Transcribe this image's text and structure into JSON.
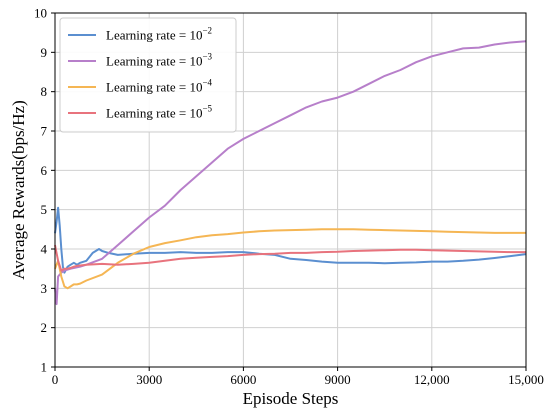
{
  "chart_data": {
    "type": "line",
    "title": "",
    "xlabel": "Episode Steps",
    "ylabel": "Average Rewards(bps/Hz)",
    "xlim": [
      0,
      15000
    ],
    "ylim": [
      1,
      10
    ],
    "x_ticks": [
      0,
      3000,
      6000,
      9000,
      12000,
      15000
    ],
    "x_tick_labels": [
      "0",
      "3000",
      "6000",
      "9000",
      "12,000",
      "15,000"
    ],
    "y_ticks": [
      1,
      2,
      3,
      4,
      5,
      6,
      7,
      8,
      9,
      10
    ],
    "y_tick_labels": [
      "1",
      "2",
      "3",
      "4",
      "5",
      "6",
      "7",
      "8",
      "9",
      "10"
    ],
    "grid": true,
    "legend_position": "top-left",
    "series": [
      {
        "name_prefix": "Learning rate = 10",
        "name_exp": "−2",
        "color": "#5b8fd0",
        "x": [
          0,
          50,
          100,
          150,
          200,
          250,
          300,
          400,
          500,
          600,
          700,
          800,
          1000,
          1200,
          1400,
          1500,
          1700,
          2000,
          2500,
          3000,
          3500,
          4000,
          4500,
          5000,
          5500,
          6000,
          6500,
          7000,
          7500,
          8000,
          8500,
          9000,
          9500,
          10000,
          10500,
          11000,
          11500,
          12000,
          12500,
          13000,
          13500,
          14000,
          14500,
          15000
        ],
        "y": [
          4.4,
          4.7,
          5.05,
          4.6,
          4.0,
          3.55,
          3.4,
          3.55,
          3.6,
          3.65,
          3.6,
          3.65,
          3.7,
          3.9,
          4.0,
          3.95,
          3.9,
          3.85,
          3.88,
          3.9,
          3.9,
          3.92,
          3.9,
          3.9,
          3.92,
          3.92,
          3.88,
          3.85,
          3.75,
          3.72,
          3.68,
          3.65,
          3.65,
          3.65,
          3.64,
          3.65,
          3.66,
          3.68,
          3.68,
          3.7,
          3.73,
          3.77,
          3.82,
          3.87
        ]
      },
      {
        "name_prefix": "Learning rate = 10",
        "name_exp": "−3",
        "color": "#b77fca",
        "x": [
          0,
          50,
          100,
          200,
          300,
          500,
          800,
          1000,
          1500,
          2000,
          2500,
          3000,
          3500,
          4000,
          4500,
          5000,
          5500,
          6000,
          6500,
          7000,
          7500,
          8000,
          8500,
          9000,
          9500,
          10000,
          10500,
          11000,
          11500,
          12000,
          12500,
          13000,
          13500,
          14000,
          14500,
          15000
        ],
        "y": [
          3.0,
          2.6,
          3.3,
          3.4,
          3.45,
          3.5,
          3.55,
          3.6,
          3.75,
          4.1,
          4.45,
          4.8,
          5.1,
          5.5,
          5.85,
          6.2,
          6.55,
          6.8,
          7.0,
          7.2,
          7.4,
          7.6,
          7.75,
          7.85,
          8.0,
          8.2,
          8.4,
          8.55,
          8.75,
          8.9,
          9.0,
          9.1,
          9.12,
          9.2,
          9.25,
          9.28
        ]
      },
      {
        "name_prefix": "Learning rate = 10",
        "name_exp": "−4",
        "color": "#f5b654",
        "x": [
          0,
          100,
          200,
          300,
          400,
          500,
          600,
          700,
          800,
          1000,
          1500,
          2000,
          2500,
          3000,
          3500,
          4000,
          4500,
          5000,
          5500,
          6000,
          6500,
          7000,
          7500,
          8000,
          8500,
          9000,
          9500,
          10000,
          10500,
          11000,
          11500,
          12000,
          12500,
          13000,
          13500,
          14000,
          14500,
          15000
        ],
        "y": [
          3.5,
          3.7,
          3.3,
          3.05,
          3.0,
          3.05,
          3.1,
          3.1,
          3.12,
          3.2,
          3.35,
          3.65,
          3.88,
          4.05,
          4.15,
          4.22,
          4.3,
          4.35,
          4.38,
          4.42,
          4.45,
          4.47,
          4.48,
          4.49,
          4.5,
          4.5,
          4.5,
          4.49,
          4.48,
          4.47,
          4.46,
          4.45,
          4.44,
          4.43,
          4.42,
          4.41,
          4.41,
          4.41
        ]
      },
      {
        "name_prefix": "Learning rate = 10",
        "name_exp": "−5",
        "color": "#e8737d",
        "x": [
          0,
          100,
          200,
          300,
          400,
          500,
          600,
          700,
          800,
          1000,
          1500,
          2000,
          2500,
          3000,
          3500,
          4000,
          4500,
          5000,
          5500,
          6000,
          6500,
          7000,
          7500,
          8000,
          8500,
          9000,
          9500,
          10000,
          10500,
          11000,
          11500,
          12000,
          12500,
          13000,
          13500,
          14000,
          14500,
          15000
        ],
        "y": [
          4.1,
          3.7,
          3.45,
          3.5,
          3.5,
          3.52,
          3.55,
          3.57,
          3.58,
          3.6,
          3.62,
          3.6,
          3.62,
          3.65,
          3.7,
          3.75,
          3.78,
          3.8,
          3.82,
          3.85,
          3.87,
          3.88,
          3.9,
          3.9,
          3.92,
          3.93,
          3.95,
          3.96,
          3.97,
          3.98,
          3.98,
          3.97,
          3.96,
          3.95,
          3.94,
          3.93,
          3.92,
          3.92
        ]
      }
    ]
  }
}
